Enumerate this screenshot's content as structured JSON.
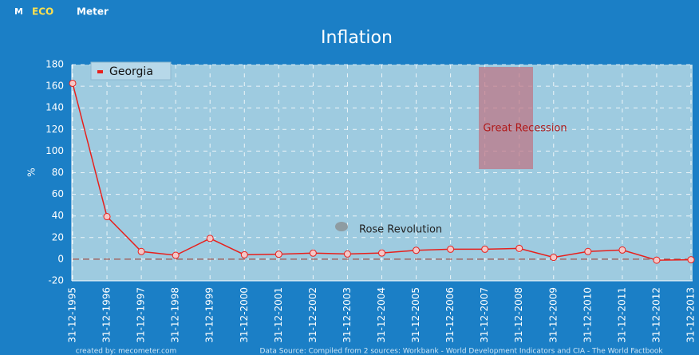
{
  "logo": [
    "M",
    "ECO",
    "Meter"
  ],
  "chart_data": {
    "type": "line",
    "title": "Inflation",
    "y_label": "%",
    "categories": [
      "31-12-1995",
      "31-12-1996",
      "31-12-1997",
      "31-12-1998",
      "31-12-1999",
      "31-12-2000",
      "31-12-2001",
      "31-12-2002",
      "31-12-2003",
      "31-12-2004",
      "31-12-2005",
      "31-12-2006",
      "31-12-2007",
      "31-12-2008",
      "31-12-2009",
      "31-12-2010",
      "31-12-2011",
      "31-12-2012",
      "31-12-2013"
    ],
    "series": [
      {
        "name": "Georgia",
        "color": "#e8201c",
        "values": [
          162.7,
          39.4,
          7.1,
          3.6,
          19.2,
          4.1,
          4.6,
          5.6,
          4.8,
          5.7,
          8.2,
          9.2,
          9.2,
          10.0,
          1.7,
          7.1,
          8.5,
          -0.9,
          -0.5
        ]
      }
    ],
    "ylim": [
      -20,
      180
    ],
    "yticks": [
      -20,
      0,
      20,
      40,
      60,
      80,
      100,
      120,
      140,
      160,
      180
    ],
    "grid": true,
    "legend": "top-left",
    "annotations": [
      "Great Recession",
      "Rose Revolution"
    ]
  },
  "footer": {
    "credit": "created by: mecometer.com",
    "source": "Data Source: Compiled from 2 sources: Workbank - World Development Indicators and CIA - The World Factbook"
  }
}
